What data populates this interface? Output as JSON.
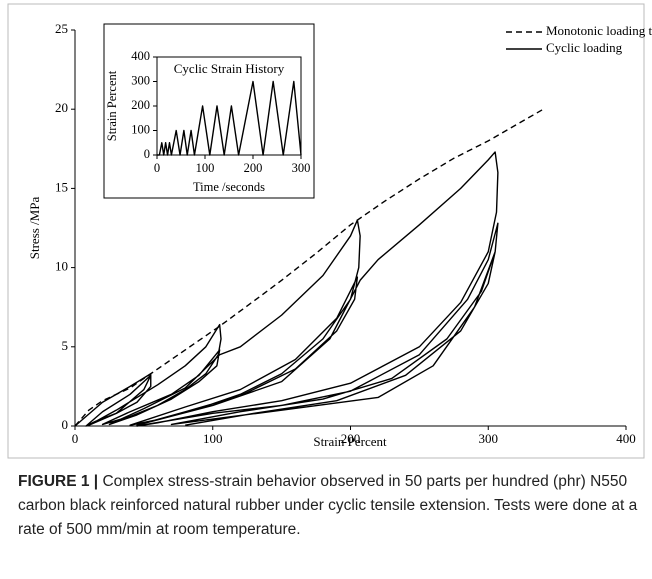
{
  "chart_data": [
    {
      "type": "line",
      "legend": "upper right",
      "xlabel": "Strain Percent",
      "ylabel": "Stress /MPa",
      "xlim": [
        0,
        400
      ],
      "xticks": [
        0,
        100,
        200,
        300,
        400
      ],
      "ylim": [
        0,
        25
      ],
      "yticks": [
        0,
        5,
        10,
        15,
        20,
        25
      ],
      "series": [
        {
          "name": "Monotonic loading to break",
          "color": "#000000",
          "linestyle": "dashed",
          "x": [
            0,
            10,
            20,
            40,
            55,
            80,
            105,
            130,
            150,
            175,
            200,
            225,
            250,
            275,
            300,
            320,
            340
          ],
          "values": [
            0,
            1.0,
            1.6,
            2.4,
            3.3,
            4.8,
            6.3,
            7.9,
            9.2,
            10.9,
            12.7,
            14.2,
            15.6,
            16.9,
            18.0,
            19.0,
            20.0
          ]
        },
        {
          "name": "Cyclic loading",
          "color": "#000000",
          "linestyle": "solid",
          "x": [
            0,
            20,
            40,
            55,
            55,
            45,
            30,
            15,
            8,
            20,
            40,
            55,
            50,
            30,
            10,
            30,
            60,
            80,
            95,
            105,
            106,
            104,
            95,
            80,
            60,
            40,
            20,
            40,
            70,
            90,
            105,
            103,
            90,
            70,
            45,
            25,
            50,
            80,
            105,
            120,
            150,
            180,
            200,
            205,
            207,
            206,
            200,
            180,
            150,
            120,
            90,
            60,
            40,
            80,
            120,
            160,
            190,
            205,
            203,
            190,
            160,
            120,
            80,
            45,
            100,
            150,
            185,
            207,
            220,
            250,
            280,
            300,
            305,
            307,
            306,
            300,
            280,
            250,
            200,
            150,
            100,
            60,
            45,
            100,
            150,
            200,
            250,
            285,
            300,
            307,
            305,
            295,
            270,
            230,
            180,
            120,
            70,
            150,
            220,
            260,
            290,
            305,
            300,
            280,
            240,
            190,
            130,
            80
          ],
          "values": [
            0,
            1.5,
            2.5,
            3.3,
            2.5,
            1.5,
            0.8,
            0.3,
            0,
            0.9,
            2.0,
            3.2,
            2.3,
            0.8,
            0.05,
            1.0,
            2.6,
            3.8,
            5.0,
            6.4,
            5.5,
            4.5,
            3.3,
            2.3,
            1.3,
            0.6,
            0.1,
            0.9,
            2.0,
            3.2,
            4.8,
            3.8,
            2.8,
            1.7,
            0.7,
            0.1,
            1.1,
            2.4,
            4.5,
            5.0,
            7.0,
            9.5,
            12.0,
            13.0,
            12.0,
            10.0,
            8.0,
            5.5,
            3.3,
            2.0,
            1.1,
            0.4,
            0.05,
            1.2,
            2.3,
            4.2,
            6.8,
            9.4,
            8.0,
            6.0,
            3.6,
            1.9,
            0.9,
            0.05,
            1.3,
            2.8,
            5.5,
            9.2,
            10.5,
            12.7,
            15.0,
            16.8,
            17.3,
            16.0,
            13.5,
            11.0,
            7.8,
            5.0,
            2.7,
            1.6,
            0.9,
            0.2,
            0,
            0.8,
            1.3,
            2.2,
            4.5,
            8.0,
            10.5,
            12.8,
            11.0,
            8.5,
            5.5,
            3.0,
            1.7,
            0.9,
            0.1,
            1.0,
            1.8,
            3.8,
            7.5,
            11.0,
            9.0,
            6.0,
            3.2,
            1.6,
            0.8,
            0.05
          ]
        }
      ]
    },
    {
      "type": "line",
      "title": "Cyclic Strain History",
      "xlabel": "Time /seconds",
      "ylabel": "Strain Percent",
      "xlim": [
        0,
        300
      ],
      "xticks": [
        0,
        100,
        200,
        300
      ],
      "ylim": [
        0,
        400
      ],
      "yticks": [
        0,
        100,
        200,
        300,
        400
      ],
      "series": [
        {
          "color": "#000000",
          "linestyle": "solid",
          "x": [
            0,
            5,
            10,
            14,
            18,
            22,
            26,
            30,
            40,
            48,
            56,
            63,
            71,
            78,
            95,
            110,
            125,
            140,
            155,
            170,
            200,
            221,
            242,
            263,
            285,
            300
          ],
          "values": [
            0,
            0,
            50,
            0,
            50,
            0,
            50,
            0,
            100,
            0,
            100,
            0,
            100,
            0,
            200,
            0,
            200,
            0,
            200,
            0,
            300,
            0,
            300,
            0,
            300,
            0
          ]
        }
      ]
    }
  ],
  "caption": {
    "label": "FIGURE 1 |",
    "text": "Complex stress-strain behavior observed in 50 parts per hundred (phr) N550 carbon black reinforced natural rubber under cyclic tensile extension. Tests were done at a rate of 500 mm/min at room temperature."
  }
}
